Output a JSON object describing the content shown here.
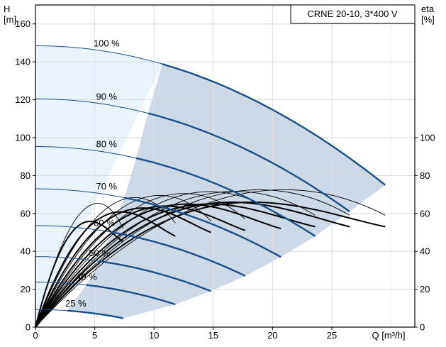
{
  "chart_data": {
    "type": "line",
    "title": "CRNE 20-10, 3*400 V",
    "ylabel_left": [
      "H",
      "[m]"
    ],
    "ylabel_right": [
      "eta",
      "[%]"
    ],
    "xlabel": "Q [m³/h]",
    "xlim": [
      0,
      32
    ],
    "ylim": [
      0,
      170
    ],
    "xticks": [
      0,
      5,
      10,
      15,
      20,
      25
    ],
    "yticks_left": [
      0,
      20,
      40,
      60,
      80,
      100,
      120,
      140,
      160
    ],
    "yticks_right": [
      0,
      20,
      40,
      60,
      80,
      100
    ],
    "grid": true,
    "colors": {
      "envelope_fill": "#cdd9e6",
      "light_fill": "#eaf3fc",
      "head_curve": "#1b4f8c",
      "efficiency_curve": "#000000"
    },
    "speeds": [
      {
        "label": "100 %",
        "H0": 148.5,
        "Qmax": 29.5,
        "Hend": 75,
        "light_end_x": 10.7,
        "efficiency_peak_at_Q": 21.4,
        "efficiency_peak": 73,
        "efficiency_end": 59
      },
      {
        "label": "90 %",
        "H0": 120.5,
        "Qmax": 26.5,
        "Hend": 61,
        "light_end_x": 9.5,
        "efficiency_peak_at_Q": 19.3,
        "efficiency_peak": 73,
        "efficiency_end": 59
      },
      {
        "label": "80 %",
        "H0": 95.3,
        "Qmax": 23.6,
        "Hend": 48,
        "light_end_x": 8.5,
        "efficiency_peak_at_Q": 17.1,
        "efficiency_peak": 72,
        "efficiency_end": 59
      },
      {
        "label": "70 %",
        "H0": 73,
        "Qmax": 20.7,
        "Hend": 37,
        "light_end_x": 7.5,
        "efficiency_peak_at_Q": 15,
        "efficiency_peak": 72,
        "efficiency_end": 58
      },
      {
        "label": "60 %",
        "H0": 53.6,
        "Qmax": 17.7,
        "Hend": 27,
        "light_end_x": 6.4,
        "efficiency_peak_at_Q": 12.8,
        "efficiency_peak": 71,
        "efficiency_end": 57
      },
      {
        "label": "50 %",
        "H0": 37.2,
        "Qmax": 14.8,
        "Hend": 19,
        "light_end_x": 5.4,
        "efficiency_peak_at_Q": 10.7,
        "efficiency_peak": 70,
        "efficiency_end": 56
      },
      {
        "label": "40 %",
        "H0": 23.8,
        "Qmax": 11.8,
        "Hend": 12,
        "light_end_x": 4.3,
        "efficiency_peak_at_Q": 8.6,
        "efficiency_peak": 69,
        "efficiency_end": 55
      },
      {
        "label": "25 %",
        "H0": 9.3,
        "Qmax": 7.4,
        "Hend": 4.7,
        "light_end_x": 2.7,
        "efficiency_peak_at_Q": 5.4,
        "efficiency_peak": 66,
        "efficiency_end": 52
      }
    ],
    "bold_efficiency_curves": [
      {
        "peak_at_Q": 17.5,
        "peak": 65,
        "end_Q": 29.5,
        "end": 53
      },
      {
        "peak_at_Q": 15.8,
        "peak": 65,
        "end_Q": 26.5,
        "end": 53
      },
      {
        "peak_at_Q": 14,
        "peak": 64,
        "end_Q": 23.6,
        "end": 53
      },
      {
        "peak_at_Q": 12.2,
        "peak": 64,
        "end_Q": 20.7,
        "end": 52
      },
      {
        "peak_at_Q": 10.5,
        "peak": 63,
        "end_Q": 17.7,
        "end": 51
      },
      {
        "peak_at_Q": 8.7,
        "peak": 62,
        "end_Q": 14.8,
        "end": 50
      },
      {
        "peak_at_Q": 6.9,
        "peak": 60,
        "end_Q": 11.8,
        "end": 48
      },
      {
        "peak_at_Q": 4.4,
        "peak": 55,
        "end_Q": 7.4,
        "end": 45
      }
    ]
  }
}
